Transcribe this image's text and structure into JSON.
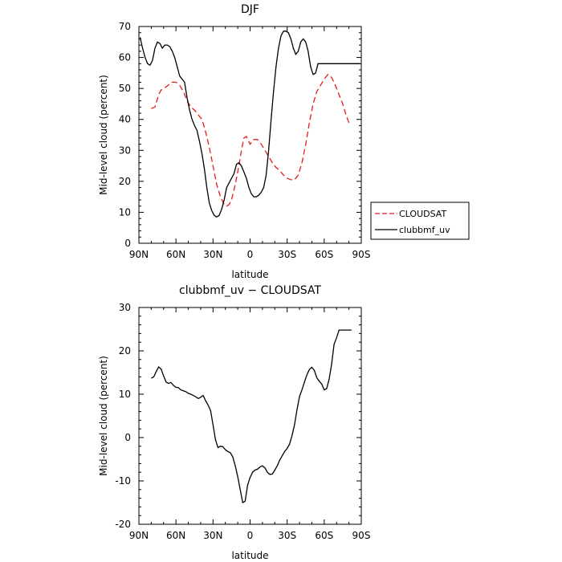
{
  "chart_data": [
    {
      "type": "line",
      "title": "DJF",
      "xlabel": "latitude",
      "ylabel": "Mid-level cloud (percent)",
      "xlim": [
        90,
        -90
      ],
      "ylim": [
        0,
        70
      ],
      "xticks": [
        {
          "value": 90,
          "label": "90N"
        },
        {
          "value": 60,
          "label": "60N"
        },
        {
          "value": 30,
          "label": "30N"
        },
        {
          "value": 0,
          "label": "0"
        },
        {
          "value": -30,
          "label": "30S"
        },
        {
          "value": -60,
          "label": "60S"
        },
        {
          "value": -90,
          "label": "90S"
        }
      ],
      "yticks": [
        0,
        10,
        20,
        30,
        40,
        50,
        60,
        70
      ],
      "legend": {
        "placement": "right"
      },
      "series": [
        {
          "name": "CLOUDSAT",
          "color": "#e41a1c",
          "dash": "dashed",
          "x": [
            80,
            77,
            74,
            72,
            68,
            65,
            63,
            60,
            57,
            54,
            51,
            48,
            45,
            42,
            39,
            36,
            33,
            30,
            27,
            24,
            21,
            19,
            17,
            15,
            12,
            9,
            7,
            5,
            3,
            0,
            -3,
            -6,
            -9,
            -12,
            -15,
            -18,
            -21,
            -24,
            -27,
            -30,
            -33,
            -36,
            -39,
            -42,
            -45,
            -48,
            -51,
            -54,
            -57,
            -60,
            -63,
            -66,
            -69,
            -72,
            -75,
            -78,
            -81
          ],
          "y": [
            43.5,
            44,
            48,
            49.5,
            50.5,
            51.5,
            52,
            52,
            51,
            49,
            46,
            44,
            43,
            41.5,
            40,
            36,
            31,
            25,
            19,
            15,
            12.5,
            12,
            12.5,
            14,
            19,
            25,
            30,
            34,
            34.5,
            32,
            33.5,
            33.5,
            32,
            30,
            28,
            26,
            24.5,
            23.5,
            22,
            21,
            20.5,
            20.5,
            22,
            26,
            32,
            39,
            45,
            49,
            51,
            53,
            54.5,
            53.5,
            51,
            48,
            45,
            41,
            38
          ]
        },
        {
          "name": "clubbmf_uv",
          "color": "#000000",
          "dash": "solid",
          "x": [
            89,
            87,
            85,
            83,
            81,
            79,
            77,
            75,
            73,
            71,
            69,
            67,
            65,
            63,
            61,
            59,
            57,
            55,
            53,
            51,
            49,
            47,
            45,
            43,
            41,
            39,
            37,
            35,
            33,
            31,
            29,
            27,
            25,
            23,
            21,
            19,
            17,
            15,
            13,
            11,
            9,
            7,
            5,
            3,
            1,
            -1,
            -3,
            -5,
            -7,
            -9,
            -11,
            -13,
            -15,
            -17,
            -19,
            -21,
            -23,
            -25,
            -27,
            -29,
            -31,
            -33,
            -35,
            -37,
            -39,
            -41,
            -43,
            -45,
            -47,
            -49,
            -51,
            -53,
            -55,
            -57,
            -59,
            -61,
            -63,
            -65,
            -67,
            -69,
            -71,
            -73,
            -75,
            -77,
            -79,
            -81,
            -83,
            -85,
            -87,
            -89
          ],
          "y": [
            66.5,
            63,
            60,
            58,
            57.5,
            59,
            63,
            65,
            64.5,
            63,
            64,
            64,
            63.5,
            62,
            60,
            57,
            54,
            53,
            52,
            47,
            43,
            40,
            38,
            36.5,
            33,
            29,
            24,
            18,
            13,
            10.5,
            9,
            8.5,
            9,
            11,
            14,
            18,
            19.5,
            21,
            22.5,
            25.5,
            26,
            25,
            23,
            21,
            18,
            16,
            15,
            15,
            15.5,
            16.5,
            18,
            22,
            30,
            40,
            49,
            57,
            63,
            67,
            68.5,
            68.5,
            68,
            66,
            63,
            61,
            62,
            65,
            66,
            65,
            62,
            57,
            54.5,
            55,
            58,
            58,
            58,
            58,
            58,
            58,
            58,
            58,
            58,
            58,
            58,
            58,
            58,
            58,
            58,
            58,
            58,
            58
          ]
        }
      ]
    },
    {
      "type": "line",
      "title": "clubbmf_uv − CLOUDSAT",
      "xlabel": "latitude",
      "ylabel": "Mid-level cloud (percent)",
      "xlim": [
        90,
        -90
      ],
      "ylim": [
        -20,
        30
      ],
      "xticks": [
        {
          "value": 90,
          "label": "90N"
        },
        {
          "value": 60,
          "label": "60N"
        },
        {
          "value": 30,
          "label": "30N"
        },
        {
          "value": 0,
          "label": "0"
        },
        {
          "value": -30,
          "label": "30S"
        },
        {
          "value": -60,
          "label": "60S"
        },
        {
          "value": -90,
          "label": "90S"
        }
      ],
      "yticks": [
        -20,
        -10,
        0,
        10,
        20,
        30
      ],
      "series": [
        {
          "name": "",
          "color": "#000000",
          "dash": "solid",
          "x": [
            80,
            78,
            76,
            74,
            72,
            70,
            68,
            66,
            64,
            62,
            60,
            58,
            56,
            54,
            52,
            50,
            48,
            46,
            44,
            42,
            40,
            38,
            36,
            34,
            32,
            30,
            28,
            26,
            24,
            22,
            20,
            18,
            16,
            14,
            12,
            10,
            8,
            6,
            4,
            2,
            0,
            -2,
            -4,
            -6,
            -8,
            -10,
            -12,
            -14,
            -16,
            -18,
            -20,
            -22,
            -24,
            -26,
            -28,
            -30,
            -32,
            -34,
            -36,
            -38,
            -40,
            -42,
            -44,
            -46,
            -48,
            -50,
            -52,
            -54,
            -56,
            -58,
            -60,
            -62,
            -64,
            -66,
            -68,
            -70,
            -72,
            -74,
            -76,
            -78,
            -80,
            -82
          ],
          "y": [
            13.7,
            14,
            15.2,
            16.3,
            15.8,
            14.2,
            12.8,
            12.5,
            12.7,
            12,
            11.6,
            11.5,
            11,
            10.8,
            10.6,
            10.2,
            10,
            9.7,
            9.4,
            9,
            9.3,
            9.7,
            8.5,
            7.5,
            6.2,
            3,
            -0.5,
            -2.3,
            -2,
            -2.1,
            -2.8,
            -3.2,
            -3.5,
            -4.5,
            -6.5,
            -9,
            -12,
            -15,
            -14.7,
            -11,
            -9.2,
            -8,
            -7.5,
            -7.3,
            -6.8,
            -6.5,
            -7,
            -8,
            -8.5,
            -8.4,
            -7.5,
            -6.5,
            -5.2,
            -4.2,
            -3.2,
            -2.5,
            -1.5,
            0.5,
            3,
            6.5,
            9.5,
            11,
            12.8,
            14.5,
            15.7,
            16.2,
            15.5,
            13.8,
            13,
            12.3,
            11,
            11.3,
            13.5,
            17,
            21.5,
            23,
            24.8,
            24.8,
            24.8,
            24.8,
            24.8,
            24.8
          ]
        }
      ]
    }
  ]
}
